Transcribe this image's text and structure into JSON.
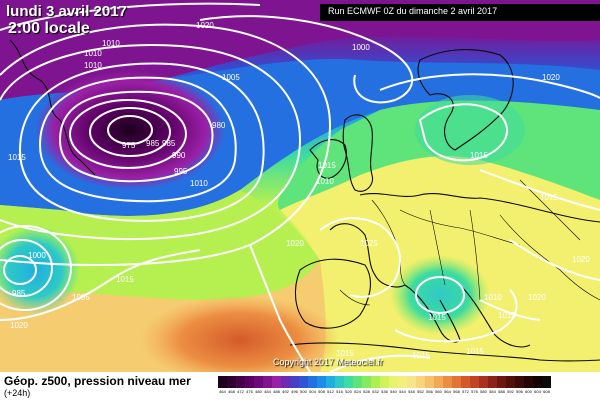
{
  "header": {
    "date": "lundi 3 avril 2017",
    "time": "2:00 locale",
    "run": "Run ECMWF 0Z du dimanche 2 avril 2017"
  },
  "footer": {
    "title": "Géop. z500, pression niveau mer",
    "lead": "(+24h)",
    "copyright": "Copyright 2017 Meteociel.fr"
  },
  "isobar_labels": [
    "1020",
    "1010",
    "1010",
    "1010",
    "1005",
    "1000",
    "1020",
    "980",
    "985",
    "975",
    "990",
    "995",
    "985",
    "1015",
    "1015",
    "1010",
    "1010",
    "1000",
    "985",
    "1005",
    "1015",
    "1020",
    "1025",
    "1015",
    "1015",
    "1020",
    "1020",
    "1015",
    "1015",
    "1015",
    "1015",
    "1010",
    "1020",
    "1015"
  ],
  "scale": {
    "colors": [
      "#1c001c",
      "#2e0030",
      "#440048",
      "#5a0062",
      "#6e087a",
      "#83128f",
      "#9a20a6",
      "#6e2ab0",
      "#4a3ec2",
      "#2f55d2",
      "#2570e0",
      "#1c8ee8",
      "#20aee0",
      "#2ec9c6",
      "#3edc9e",
      "#5ee47a",
      "#86ea5e",
      "#aeee52",
      "#cef25a",
      "#e6f46a",
      "#f4ee7c",
      "#f8e48a",
      "#f8d47c",
      "#f6c06a",
      "#f2a856",
      "#ec8e42",
      "#e27434",
      "#d45a2a",
      "#c24424",
      "#a8321c",
      "#8a2416",
      "#6c1810",
      "#52100a",
      "#3a0a06",
      "#260404",
      "#140000",
      "#0a0a0a"
    ],
    "labels": [
      "464",
      "468",
      "472",
      "476",
      "480",
      "484",
      "488",
      "492",
      "496",
      "500",
      "504",
      "508",
      "512",
      "516",
      "520",
      "524",
      "528",
      "532",
      "536",
      "540",
      "544",
      "548",
      "552",
      "556",
      "560",
      "564",
      "568",
      "572",
      "576",
      "580",
      "584",
      "588",
      "592",
      "596",
      "600",
      "604",
      "608"
    ]
  }
}
